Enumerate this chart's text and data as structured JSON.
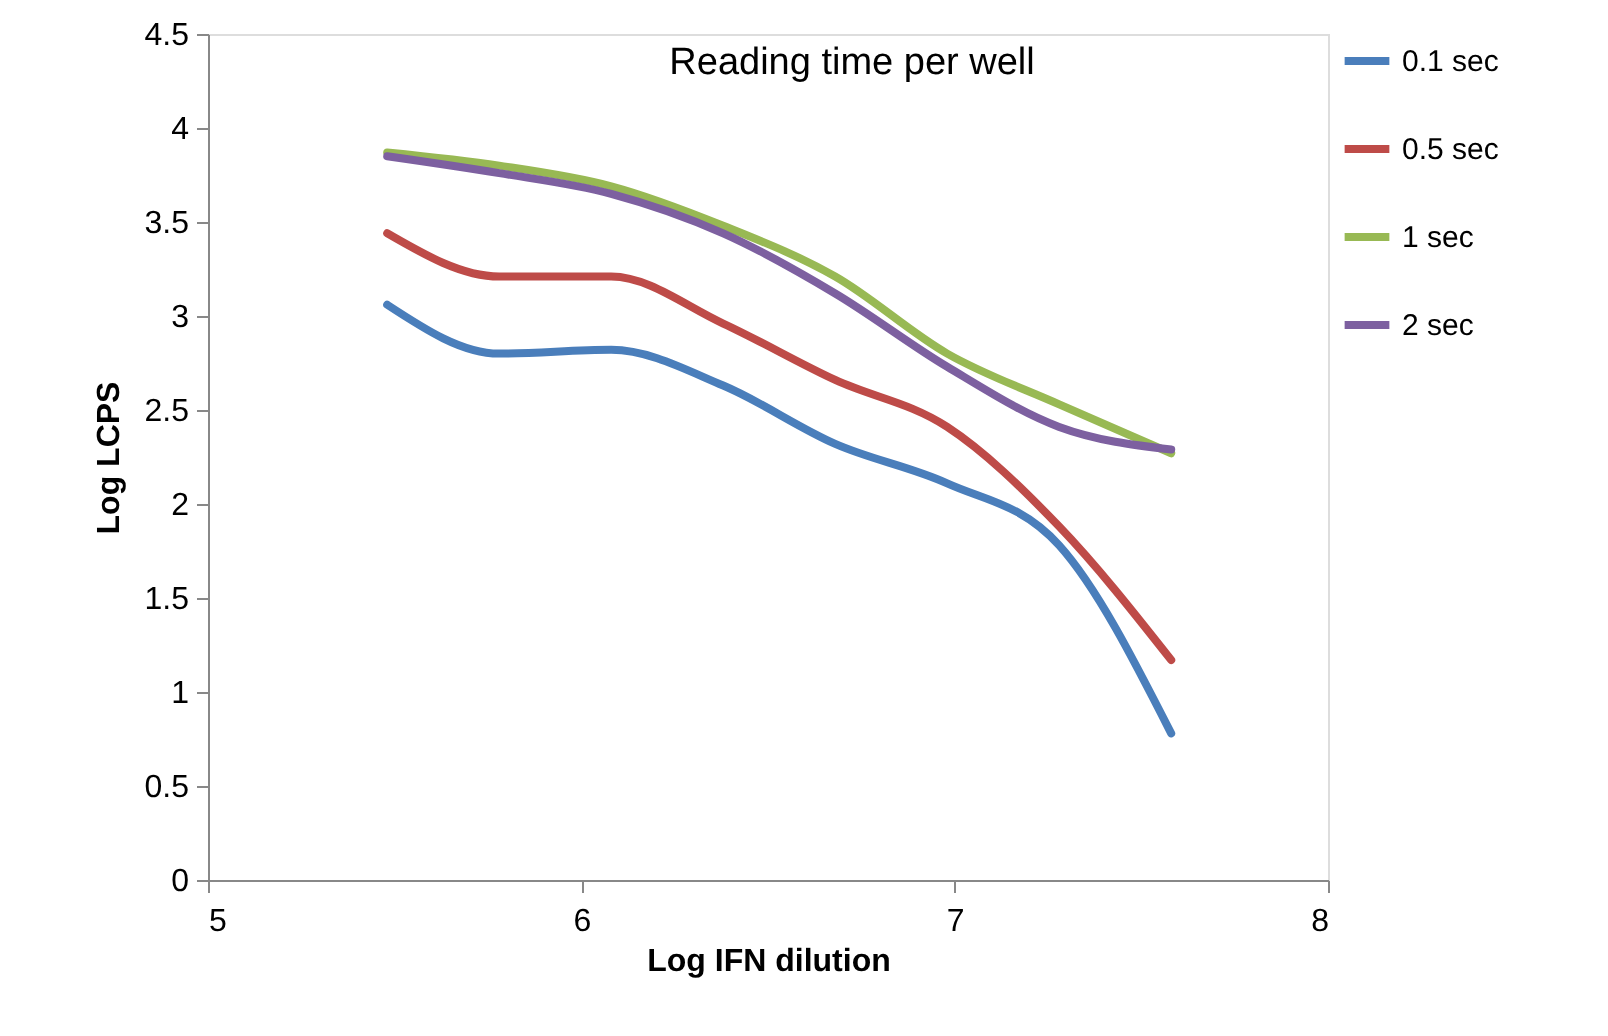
{
  "chart_data": {
    "type": "line",
    "title": "Reading time per well",
    "xlabel": "Log IFN dilution",
    "ylabel": "Log LCPS",
    "x": [
      5.48,
      5.78,
      6.08,
      6.38,
      6.68,
      6.98,
      7.28,
      7.58
    ],
    "series": [
      {
        "name": "0.1 sec",
        "color": "#4a7ebb",
        "values": [
          3.06,
          2.8,
          2.82,
          2.63,
          2.32,
          2.11,
          1.78,
          0.78
        ]
      },
      {
        "name": "0.5 sec",
        "color": "#be4b48",
        "values": [
          3.44,
          3.21,
          3.21,
          2.96,
          2.66,
          2.41,
          1.88,
          1.17
        ]
      },
      {
        "name": "1 sec",
        "color": "#98b954",
        "values": [
          3.87,
          3.8,
          3.69,
          3.48,
          3.21,
          2.8,
          2.53,
          2.27
        ]
      },
      {
        "name": "2 sec",
        "color": "#7d60a0",
        "values": [
          3.85,
          3.76,
          3.65,
          3.44,
          3.12,
          2.73,
          2.41,
          2.29
        ]
      }
    ],
    "xlim": [
      5,
      8
    ],
    "xticks": [
      5,
      6,
      7,
      8
    ],
    "ylim": [
      0,
      4.5
    ],
    "yticks": [
      0,
      0.5,
      1,
      1.5,
      2,
      2.5,
      3,
      3.5,
      4,
      4.5
    ],
    "grid": false,
    "legend": "right",
    "marker": "none",
    "line_style": "solid"
  }
}
